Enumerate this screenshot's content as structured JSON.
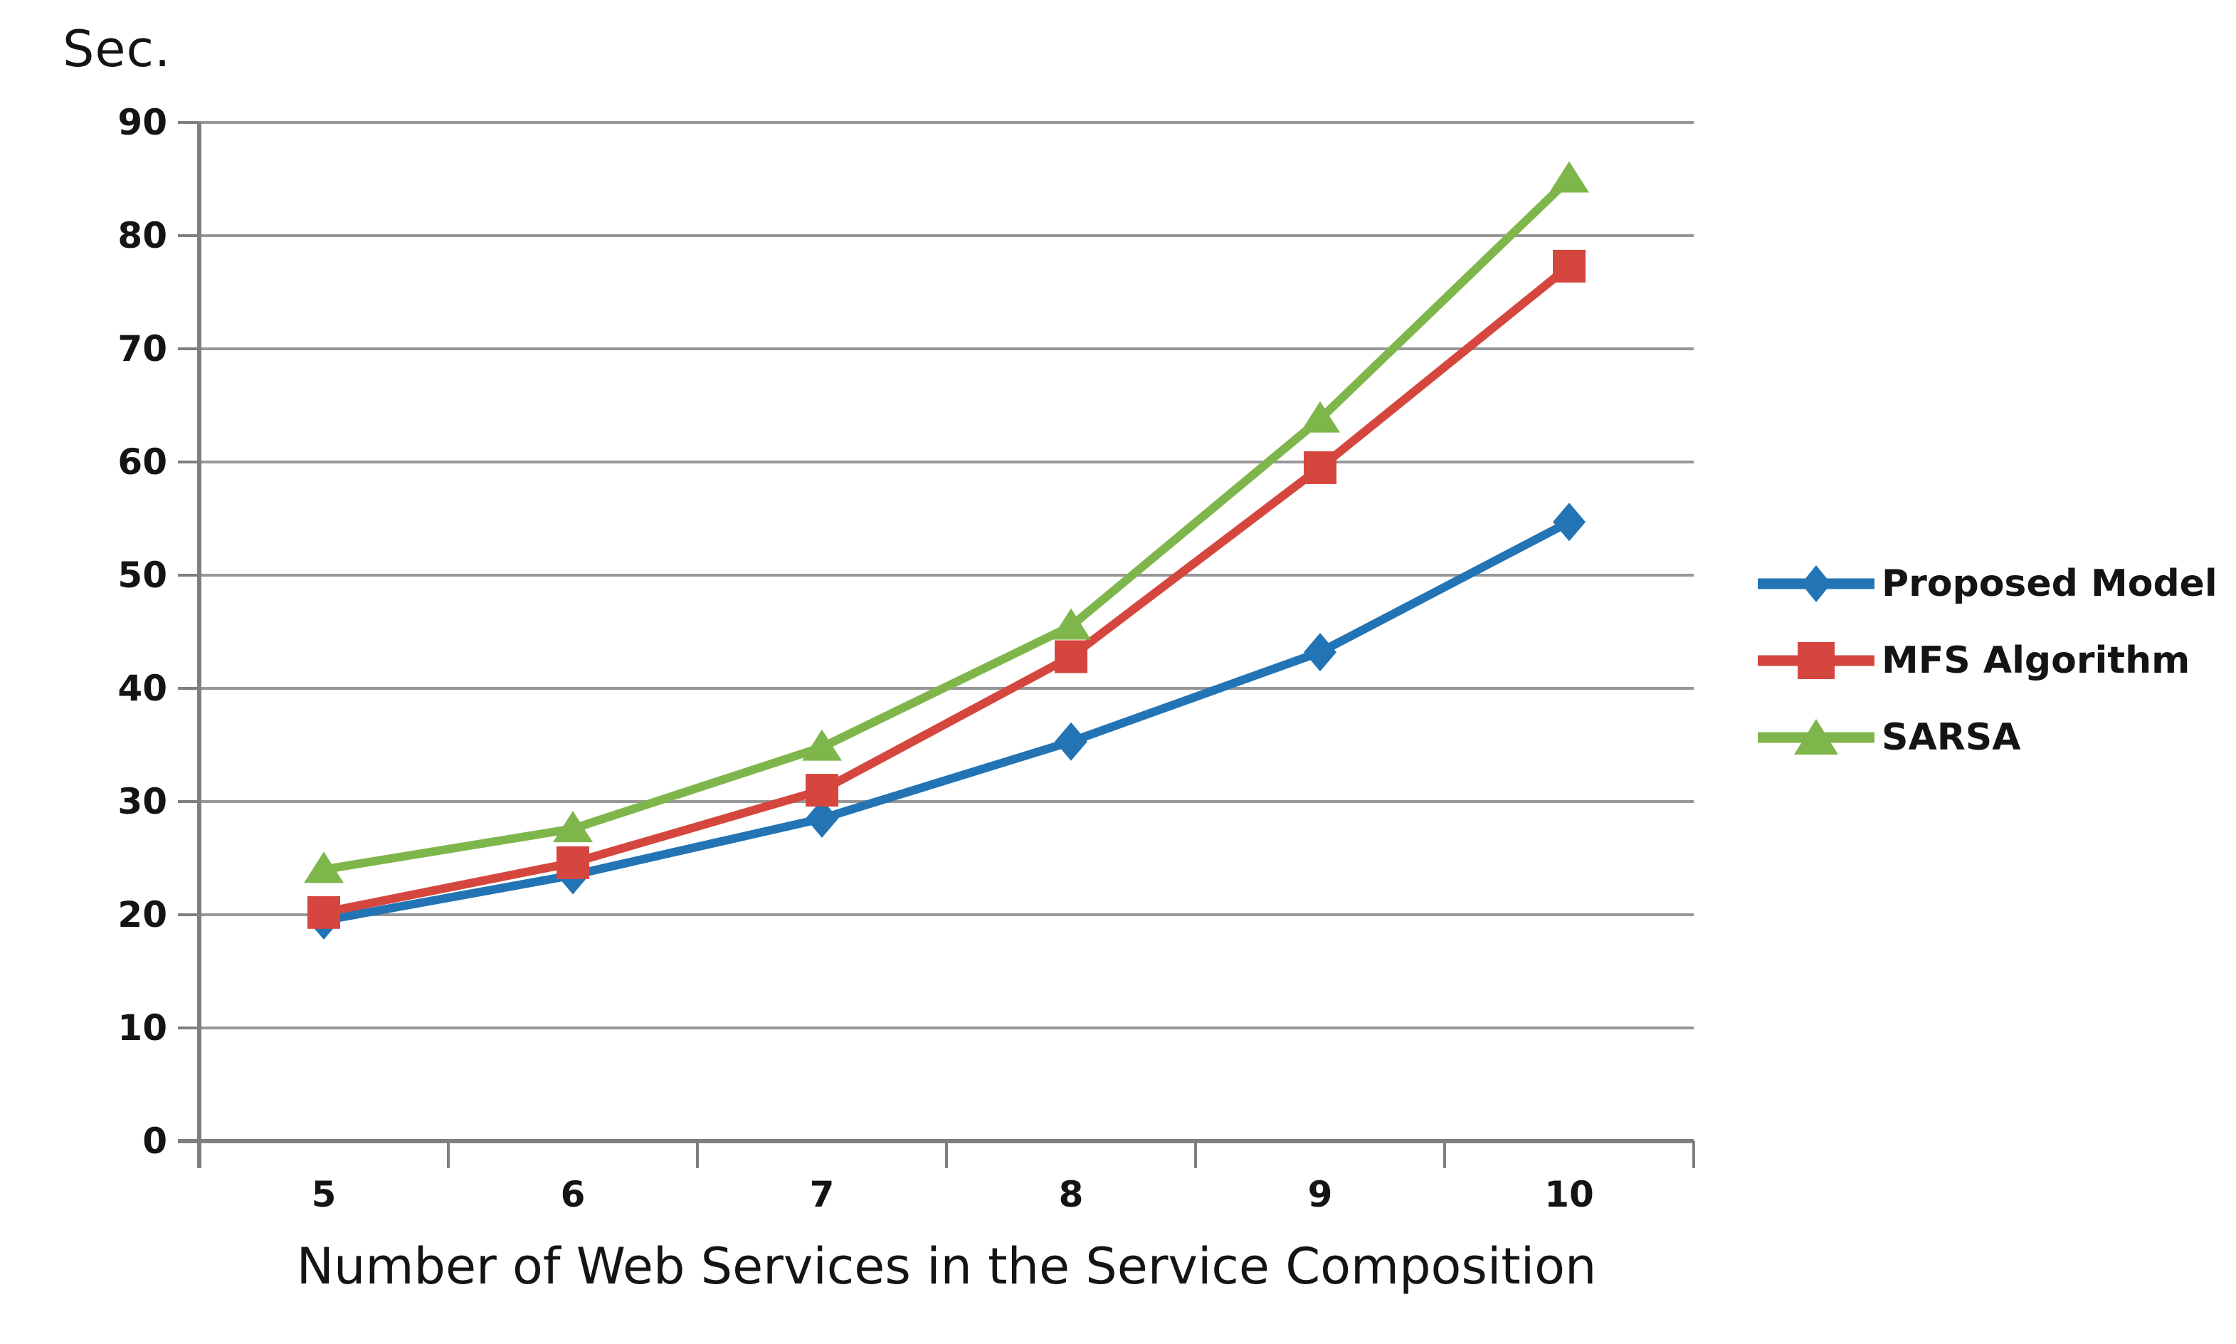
{
  "chart_data": {
    "type": "line",
    "title": "",
    "ylabel": "Sec.",
    "xlabel": "Number of Web Services in the Service Composition",
    "x_categories": [
      "5",
      "6",
      "7",
      "8",
      "9",
      "10"
    ],
    "y_ticks": [
      "0",
      "10",
      "20",
      "30",
      "40",
      "50",
      "60",
      "70",
      "80",
      "90"
    ],
    "ylim": [
      0,
      90
    ],
    "grid": "horizontal",
    "legend_position": "right",
    "series": [
      {
        "name": "Proposed Model",
        "marker": "diamond",
        "color": "#2274B5",
        "values": [
          19.5,
          23.5,
          28.5,
          35.3,
          43.2,
          54.7
        ]
      },
      {
        "name": "MFS Algorithm",
        "marker": "square",
        "color": "#D5473E",
        "values": [
          20.2,
          24.6,
          31.0,
          42.8,
          59.5,
          77.3
        ]
      },
      {
        "name": "SARSA",
        "marker": "triangle",
        "color": "#7FB64C",
        "values": [
          24.0,
          27.6,
          34.8,
          45.5,
          63.8,
          85.0
        ]
      }
    ]
  },
  "colors": {
    "gridline": "#979797",
    "axis": "#7F7F7F",
    "text": "#141414"
  }
}
